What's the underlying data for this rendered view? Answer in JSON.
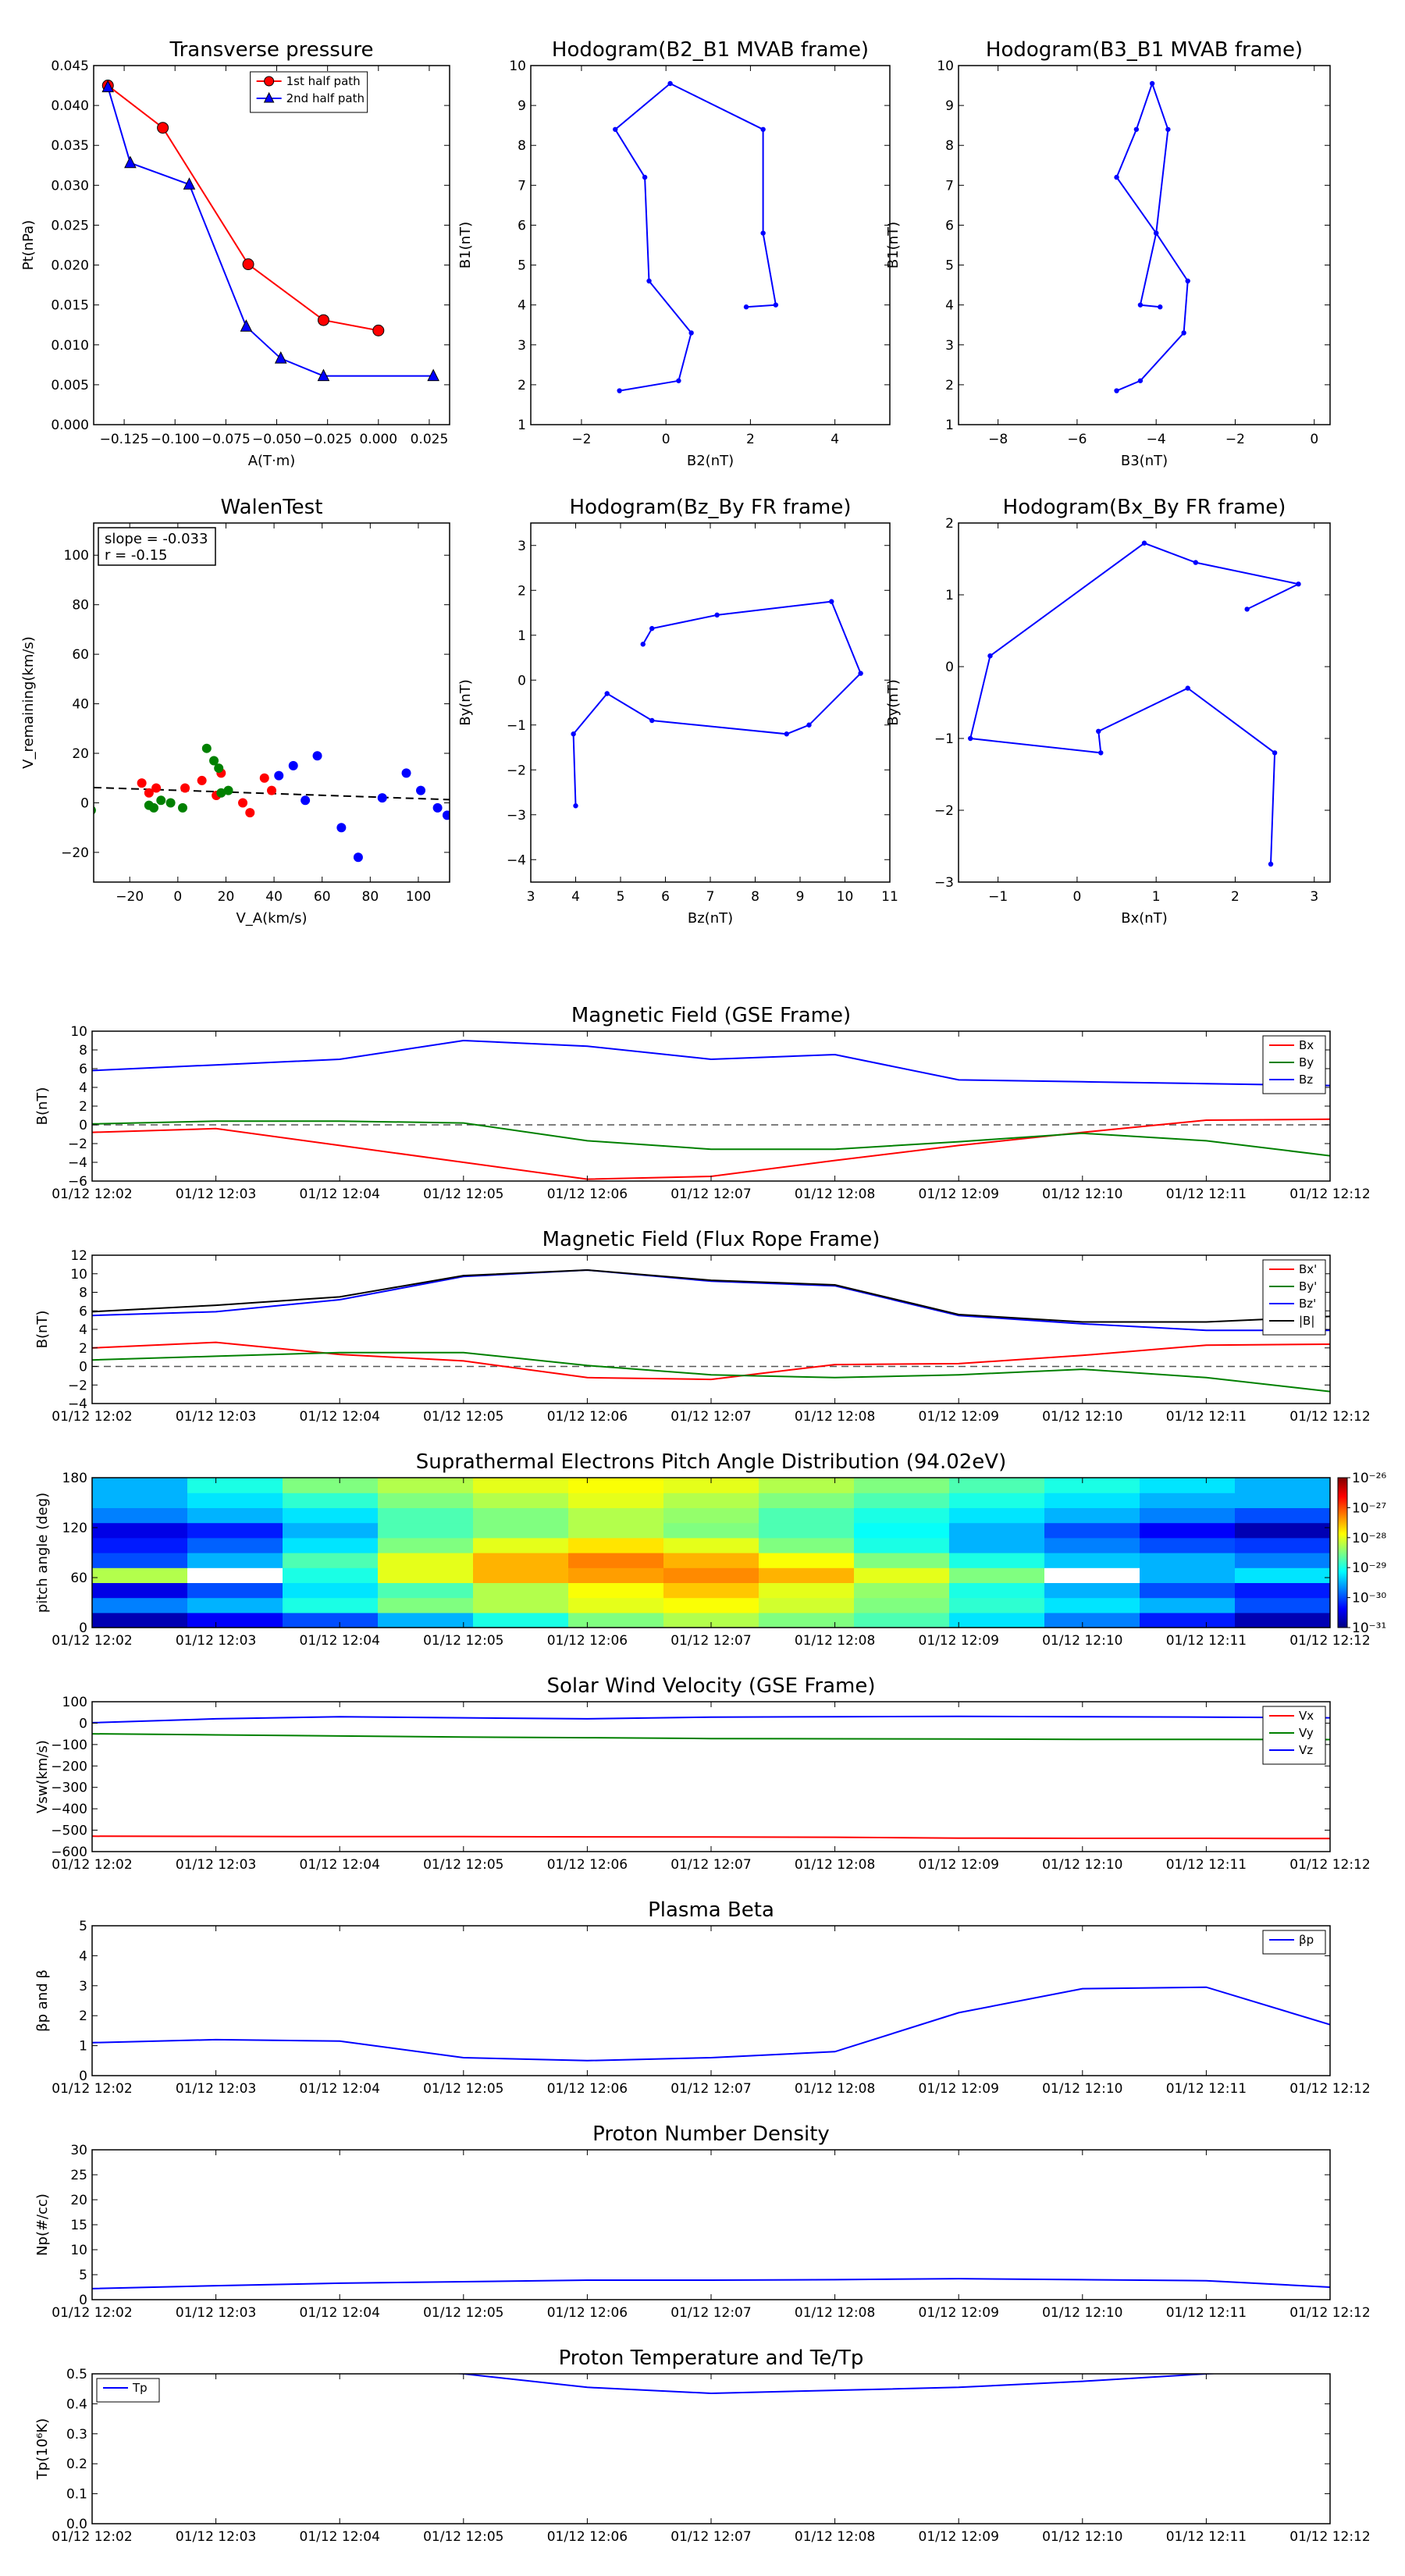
{
  "colors": {
    "red": "#ff0000",
    "green": "#008000",
    "blue": "#0000ff",
    "black": "#000000",
    "axis": "#000000",
    "dashed": "#555555"
  },
  "time_ticks": [
    "01/12 12:02",
    "01/12 12:03",
    "01/12 12:04",
    "01/12 12:05",
    "01/12 12:06",
    "01/12 12:07",
    "01/12 12:08",
    "01/12 12:09",
    "01/12 12:10",
    "01/12 12:11",
    "01/12 12:12"
  ],
  "walen_box": {
    "slope": "slope = -0.033",
    "r": "r = -0.15"
  },
  "chart_data": [
    {
      "id": "pt",
      "type": "line",
      "title": "Transverse pressure",
      "xlabel": "A(T·m)",
      "ylabel": "Pt(nPa)",
      "xlim": [
        -0.14,
        0.035
      ],
      "ylim": [
        0,
        0.045
      ],
      "xticks": [
        -0.125,
        -0.1,
        -0.075,
        -0.05,
        -0.025,
        0.0,
        0.025
      ],
      "xticklabels": [
        "−0.125",
        "−0.100",
        "−0.075",
        "−0.050",
        "−0.025",
        "0.000",
        "0.025"
      ],
      "yticks": [
        0,
        0.005,
        0.01,
        0.015,
        0.02,
        0.025,
        0.03,
        0.035,
        0.04,
        0.045
      ],
      "yticklabels": [
        "0.000",
        "0.005",
        "0.010",
        "0.015",
        "0.020",
        "0.025",
        "0.030",
        "0.035",
        "0.040",
        "0.045"
      ],
      "legend": {
        "position": "top-center"
      },
      "series": [
        {
          "name": "1st half path",
          "color": "red",
          "marker": "circle",
          "x": [
            -0.133,
            -0.106,
            -0.064,
            -0.027,
            0.0
          ],
          "y": [
            0.0425,
            0.0372,
            0.0201,
            0.0131,
            0.0118
          ]
        },
        {
          "name": "2nd half path",
          "color": "blue",
          "marker": "triangle",
          "x": [
            -0.133,
            -0.122,
            -0.093,
            -0.065,
            -0.048,
            -0.027,
            0.027
          ],
          "y": [
            0.0423,
            0.0328,
            0.0301,
            0.0123,
            0.0083,
            0.0061,
            0.0061
          ]
        }
      ]
    },
    {
      "id": "h21",
      "type": "line",
      "title": "Hodogram(B2_B1 MVAB frame)",
      "xlabel": "B2(nT)",
      "ylabel": "B1(nT)",
      "xlim": [
        -3.2,
        5.3
      ],
      "ylim": [
        1,
        10
      ],
      "xticks": [
        -2,
        0,
        2,
        4
      ],
      "xticklabels": [
        "−2",
        "0",
        "2",
        "4"
      ],
      "yticks": [
        1,
        2,
        3,
        4,
        5,
        6,
        7,
        8,
        9,
        10
      ],
      "yticklabels": [
        "1",
        "2",
        "3",
        "4",
        "5",
        "6",
        "7",
        "8",
        "9",
        "10"
      ],
      "series": [
        {
          "color": "blue",
          "marker": "dot",
          "x": [
            -1.1,
            0.3,
            0.6,
            -0.4,
            -0.5,
            -1.2,
            0.1,
            2.3,
            2.3,
            2.6,
            1.9
          ],
          "y": [
            1.85,
            2.1,
            3.3,
            4.6,
            7.2,
            8.4,
            9.55,
            8.4,
            5.8,
            4.0,
            3.95
          ]
        }
      ]
    },
    {
      "id": "h31",
      "type": "line",
      "title": "Hodogram(B3_B1 MVAB frame)",
      "xlabel": "B3(nT)",
      "ylabel": "B1(nT)",
      "xlim": [
        -9,
        0.4
      ],
      "ylim": [
        1,
        10
      ],
      "xticks": [
        -8,
        -6,
        -4,
        -2,
        0
      ],
      "xticklabels": [
        "−8",
        "−6",
        "−4",
        "−2",
        "0"
      ],
      "yticks": [
        1,
        2,
        3,
        4,
        5,
        6,
        7,
        8,
        9,
        10
      ],
      "yticklabels": [
        "1",
        "2",
        "3",
        "4",
        "5",
        "6",
        "7",
        "8",
        "9",
        "10"
      ],
      "series": [
        {
          "color": "blue",
          "marker": "dot",
          "x": [
            -5.0,
            -4.4,
            -3.3,
            -3.2,
            -4.0,
            -5.0,
            -4.5,
            -4.1,
            -3.7,
            -4.0,
            -4.4,
            -3.9
          ],
          "y": [
            1.85,
            2.1,
            3.3,
            4.6,
            5.8,
            7.2,
            8.4,
            9.55,
            8.4,
            5.8,
            4.0,
            3.95
          ]
        }
      ]
    },
    {
      "id": "walen",
      "type": "scatter",
      "title": "WalenTest",
      "xlabel": "V_A(km/s)",
      "ylabel": "V_remaining(km/s)",
      "xlim": [
        -35,
        113
      ],
      "ylim": [
        -32,
        113
      ],
      "xticks": [
        -20,
        0,
        20,
        40,
        60,
        80,
        100
      ],
      "xticklabels": [
        "−20",
        "0",
        "20",
        "40",
        "60",
        "80",
        "100"
      ],
      "yticks": [
        -20,
        0,
        20,
        40,
        60,
        80,
        100
      ],
      "yticklabels": [
        "−20",
        "0",
        "20",
        "40",
        "60",
        "80",
        "100"
      ],
      "fit_line": {
        "x": [
          -35,
          113
        ],
        "y": [
          6.2,
          1.3
        ]
      },
      "series": [
        {
          "color": "red",
          "x": [
            -15,
            -12,
            -9,
            3,
            10,
            16,
            18,
            27,
            30,
            36,
            39
          ],
          "y": [
            8,
            4,
            6,
            6,
            9,
            3,
            12,
            0,
            -4,
            10,
            5
          ]
        },
        {
          "color": "green",
          "x": [
            -36,
            -12,
            -10,
            -7,
            -3,
            2,
            12,
            15,
            17,
            18,
            21
          ],
          "y": [
            -3,
            -1,
            -2,
            1,
            0,
            -2,
            22,
            17,
            14,
            4,
            5
          ]
        },
        {
          "color": "blue",
          "x": [
            42,
            48,
            53,
            58,
            68,
            75,
            85,
            95,
            101,
            108,
            112
          ],
          "y": [
            11,
            15,
            1,
            19,
            -10,
            -22,
            2,
            12,
            5,
            -2,
            -5
          ]
        }
      ]
    },
    {
      "id": "hzy",
      "type": "line",
      "title": "Hodogram(Bz_By FR frame)",
      "xlabel": "Bz(nT)",
      "ylabel": "By(nT)",
      "xlim": [
        3,
        11
      ],
      "ylim": [
        -4.5,
        3.5
      ],
      "xticks": [
        3,
        4,
        5,
        6,
        7,
        8,
        9,
        10,
        11
      ],
      "xticklabels": [
        "3",
        "4",
        "5",
        "6",
        "7",
        "8",
        "9",
        "10",
        "11"
      ],
      "yticks": [
        -4,
        -3,
        -2,
        -1,
        0,
        1,
        2,
        3
      ],
      "yticklabels": [
        "−4",
        "−3",
        "−2",
        "−1",
        "0",
        "1",
        "2",
        "3"
      ],
      "series": [
        {
          "color": "blue",
          "marker": "dot",
          "x": [
            4.0,
            3.95,
            4.7,
            5.7,
            8.7,
            9.2,
            10.35,
            9.7,
            7.15,
            5.7,
            5.5
          ],
          "y": [
            -2.8,
            -1.2,
            -0.3,
            -0.9,
            -1.2,
            -1.0,
            0.15,
            1.75,
            1.45,
            1.15,
            0.8
          ]
        }
      ]
    },
    {
      "id": "hxy",
      "type": "line",
      "title": "Hodogram(Bx_By FR frame)",
      "xlabel": "Bx(nT)",
      "ylabel": "By(nT)",
      "xlim": [
        -1.5,
        3.2
      ],
      "ylim": [
        -3,
        2
      ],
      "xticks": [
        -1,
        0,
        1,
        2,
        3
      ],
      "xticklabels": [
        "−1",
        "0",
        "1",
        "2",
        "3"
      ],
      "yticks": [
        -3,
        -2,
        -1,
        0,
        1,
        2
      ],
      "yticklabels": [
        "−3",
        "−2",
        "−1",
        "0",
        "1",
        "2"
      ],
      "series": [
        {
          "color": "blue",
          "marker": "dot",
          "x": [
            2.45,
            2.5,
            1.4,
            0.27,
            0.3,
            -1.35,
            -1.1,
            0.85,
            1.5,
            2.8,
            2.15
          ],
          "y": [
            -2.75,
            -1.2,
            -0.3,
            -0.9,
            -1.2,
            -1.0,
            0.15,
            1.72,
            1.45,
            1.15,
            0.8
          ]
        }
      ]
    },
    {
      "id": "bgse",
      "type": "line",
      "title": "Magnetic Field (GSE Frame)",
      "ylabel": "B(nT)",
      "ylim": [
        -6,
        10
      ],
      "yticks": [
        -6,
        -4,
        -2,
        0,
        2,
        4,
        6,
        8,
        10
      ],
      "yticklabels": [
        "−6",
        "−4",
        "−2",
        "0",
        "2",
        "4",
        "6",
        "8",
        "10"
      ],
      "zero_line": true,
      "legend": {
        "position": "right"
      },
      "series": [
        {
          "name": "Bx",
          "color": "red",
          "values": [
            -0.8,
            -0.4,
            -2.2,
            -4.0,
            -5.8,
            -5.5,
            -3.8,
            -2.2,
            -0.8,
            0.5,
            0.6
          ]
        },
        {
          "name": "By",
          "color": "green",
          "values": [
            0.1,
            0.4,
            0.4,
            0.2,
            -1.7,
            -2.6,
            -2.6,
            -1.8,
            -0.9,
            -1.7,
            -3.3
          ]
        },
        {
          "name": "Bz",
          "color": "blue",
          "values": [
            5.8,
            6.4,
            7.0,
            9.0,
            8.4,
            7.0,
            7.5,
            4.8,
            4.6,
            4.4,
            4.2
          ]
        }
      ]
    },
    {
      "id": "bfr",
      "type": "line",
      "title": "Magnetic Field (Flux Rope Frame)",
      "ylabel": "B(nT)",
      "ylim": [
        -4,
        12
      ],
      "yticks": [
        -4,
        -2,
        0,
        2,
        4,
        6,
        8,
        10,
        12
      ],
      "yticklabels": [
        "−4",
        "−2",
        "0",
        "2",
        "4",
        "6",
        "8",
        "10",
        "12"
      ],
      "zero_line": true,
      "legend": {
        "position": "right"
      },
      "series": [
        {
          "name": "Bx'",
          "color": "red",
          "values": [
            2.0,
            2.6,
            1.3,
            0.6,
            -1.2,
            -1.4,
            0.2,
            0.3,
            1.2,
            2.3,
            2.4
          ]
        },
        {
          "name": "By'",
          "color": "green",
          "values": [
            0.7,
            1.1,
            1.5,
            1.5,
            0.1,
            -0.9,
            -1.2,
            -0.9,
            -0.3,
            -1.2,
            -2.7
          ]
        },
        {
          "name": "Bz'",
          "color": "blue",
          "values": [
            5.5,
            5.9,
            7.2,
            9.7,
            10.4,
            9.2,
            8.7,
            5.5,
            4.6,
            3.9,
            3.9
          ]
        },
        {
          "name": "|B|",
          "color": "black",
          "values": [
            5.9,
            6.6,
            7.5,
            9.8,
            10.4,
            9.3,
            8.8,
            5.6,
            4.8,
            4.8,
            5.4
          ]
        }
      ]
    },
    {
      "id": "pad",
      "type": "heatmap",
      "title": "Suprathermal Electrons Pitch Angle Distribution (94.02eV)",
      "ylabel": "pitch angle (deg)",
      "ylim": [
        0,
        180
      ],
      "yticks": [
        0,
        60,
        120,
        180
      ],
      "yticklabels": [
        "0",
        "60",
        "120",
        "180"
      ],
      "colorbar": {
        "ticks": [
          "10⁻²⁶",
          "10⁻²⁷",
          "10⁻²⁸",
          "10⁻²⁹",
          "10⁻³⁰",
          "10⁻³¹"
        ]
      },
      "z": [
        [
          0.05,
          0.12,
          0.2,
          0.3,
          0.4,
          0.5,
          0.55,
          0.5,
          0.45,
          0.35,
          0.25,
          0.15,
          0.05
        ],
        [
          0.25,
          0.3,
          0.4,
          0.5,
          0.55,
          0.6,
          0.62,
          0.58,
          0.5,
          0.42,
          0.35,
          0.3,
          0.2
        ],
        [
          0.1,
          0.2,
          0.35,
          0.45,
          0.55,
          0.62,
          0.68,
          0.6,
          0.52,
          0.4,
          0.3,
          0.2,
          0.15
        ],
        [
          0.55,
          -1,
          0.4,
          0.6,
          0.7,
          0.72,
          0.74,
          0.7,
          0.6,
          0.5,
          -1,
          0.3,
          0.35
        ],
        [
          0.2,
          0.3,
          0.45,
          0.6,
          0.7,
          0.75,
          0.7,
          0.62,
          0.5,
          0.4,
          0.32,
          0.3,
          0.25
        ],
        [
          0.15,
          0.22,
          0.35,
          0.5,
          0.6,
          0.65,
          0.6,
          0.5,
          0.4,
          0.3,
          0.25,
          0.2,
          0.18
        ],
        [
          0.1,
          0.15,
          0.3,
          0.45,
          0.5,
          0.55,
          0.5,
          0.45,
          0.38,
          0.3,
          0.2,
          0.12,
          0.05
        ],
        [
          0.25,
          0.3,
          0.35,
          0.45,
          0.5,
          0.55,
          0.52,
          0.45,
          0.4,
          0.35,
          0.3,
          0.25,
          0.2
        ],
        [
          0.3,
          0.35,
          0.42,
          0.5,
          0.55,
          0.6,
          0.55,
          0.5,
          0.45,
          0.4,
          0.35,
          0.3,
          0.3
        ],
        [
          0.3,
          0.4,
          0.5,
          0.55,
          0.6,
          0.62,
          0.6,
          0.55,
          0.5,
          0.45,
          0.4,
          0.35,
          0.3
        ]
      ]
    },
    {
      "id": "vsw",
      "type": "line",
      "title": "Solar Wind Velocity (GSE Frame)",
      "ylabel": "Vsw(km/s)",
      "ylim": [
        -600,
        100
      ],
      "yticks": [
        -600,
        -500,
        -400,
        -300,
        -200,
        -100,
        0,
        100
      ],
      "yticklabels": [
        "−600",
        "−500",
        "−400",
        "−300",
        "−200",
        "−100",
        "0",
        "100"
      ],
      "legend": {
        "position": "right"
      },
      "series": [
        {
          "name": "Vx",
          "color": "red",
          "values": [
            -528,
            -529,
            -530,
            -530,
            -531,
            -532,
            -533,
            -537,
            -538,
            -538,
            -539
          ]
        },
        {
          "name": "Vy",
          "color": "green",
          "values": [
            -50,
            -55,
            -60,
            -65,
            -68,
            -72,
            -73,
            -74,
            -76,
            -76,
            -77
          ]
        },
        {
          "name": "Vz",
          "color": "blue",
          "values": [
            2,
            20,
            30,
            25,
            20,
            28,
            30,
            32,
            30,
            28,
            25
          ]
        }
      ]
    },
    {
      "id": "beta",
      "type": "line",
      "title": "Plasma Beta",
      "ylabel": "βp and β",
      "ylim": [
        0,
        5
      ],
      "yticks": [
        0,
        1,
        2,
        3,
        4,
        5
      ],
      "yticklabels": [
        "0",
        "1",
        "2",
        "3",
        "4",
        "5"
      ],
      "legend": {
        "position": "top-right"
      },
      "series": [
        {
          "name": "βp",
          "color": "blue",
          "values": [
            1.1,
            1.2,
            1.15,
            0.6,
            0.5,
            0.6,
            0.8,
            2.1,
            2.9,
            2.95,
            1.7
          ]
        }
      ]
    },
    {
      "id": "np",
      "type": "line",
      "title": "Proton Number Density",
      "ylabel": "Np(#/cc)",
      "ylim": [
        0,
        30
      ],
      "yticks": [
        0,
        5,
        10,
        15,
        20,
        25,
        30
      ],
      "yticklabels": [
        "0",
        "5",
        "10",
        "15",
        "20",
        "25",
        "30"
      ],
      "series": [
        {
          "color": "blue",
          "values": [
            2.2,
            2.8,
            3.3,
            3.6,
            3.9,
            3.9,
            4.0,
            4.2,
            4.0,
            3.8,
            2.5
          ]
        }
      ]
    },
    {
      "id": "tp",
      "type": "line",
      "title": "Proton Temperature and Te/Tp",
      "ylabel": "Tp(10⁶K)",
      "ylim": [
        0,
        0.5
      ],
      "yticks": [
        0,
        0.1,
        0.2,
        0.3,
        0.4,
        0.5
      ],
      "yticklabels": [
        "0.0",
        "0.1",
        "0.2",
        "0.3",
        "0.4",
        "0.5"
      ],
      "legend": {
        "position": "top-left"
      },
      "series": [
        {
          "name": "Tp",
          "color": "blue",
          "values": [
            0.55,
            0.54,
            0.53,
            0.5,
            0.455,
            0.435,
            0.445,
            0.455,
            0.475,
            0.5,
            0.52
          ]
        }
      ]
    }
  ]
}
